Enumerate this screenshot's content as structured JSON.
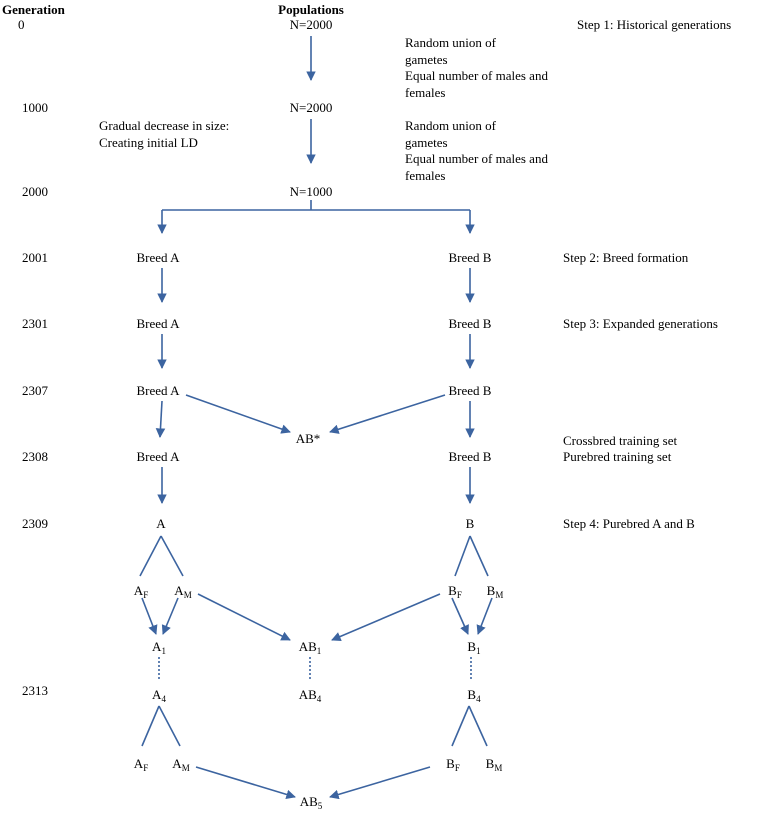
{
  "headers": {
    "generation": "Generation",
    "populations": "Populations"
  },
  "generations": [
    "0",
    "1000",
    "2000",
    "2001",
    "2301",
    "2307",
    "2308",
    "2309",
    "2313"
  ],
  "steps": {
    "step1": "Step 1: Historical generations",
    "step2": "Step 2: Breed formation",
    "step3": "Step 3: Expanded generations",
    "crossbred": "Crossbred training set",
    "purebred": "Purebred training set",
    "step4": "Step 4: Purebred A and B"
  },
  "notes": {
    "random_union_1": "Random union of gametes",
    "equal_1": "Equal number of males and females",
    "random_union_2": "Random union of gametes",
    "equal_2": "Equal number of males and females",
    "gradual_decrease": "Gradual decrease in size: Creating initial LD"
  },
  "nodes": {
    "n2000_a": "N=2000",
    "n2000_b": "N=2000",
    "n1000": "N=1000",
    "breedA_2001": "Breed A",
    "breedB_2001": "Breed B",
    "breedA_2301": "Breed A",
    "breedB_2301": "Breed B",
    "breedA_2307": "Breed A",
    "breedB_2307": "Breed B",
    "ab_star": "AB*",
    "breedA_2308": "Breed A",
    "breedB_2308": "Breed B",
    "a": "A",
    "b": "B",
    "a_base": "A",
    "af_sub": "F",
    "am_sub": "M",
    "b_base": "B",
    "bf_sub": "F",
    "bm_sub": "M",
    "a1_sub": "1",
    "ab1_base": "AB",
    "ab1_sub": "1",
    "b1_sub": "1",
    "a4_sub": "4",
    "ab4_base": "AB",
    "ab4_sub": "4",
    "b4_sub": "4",
    "ab5_base": "AB",
    "ab5_sub": "5"
  },
  "colors": {
    "arrow": "#3c64a0",
    "text": "#000000"
  }
}
